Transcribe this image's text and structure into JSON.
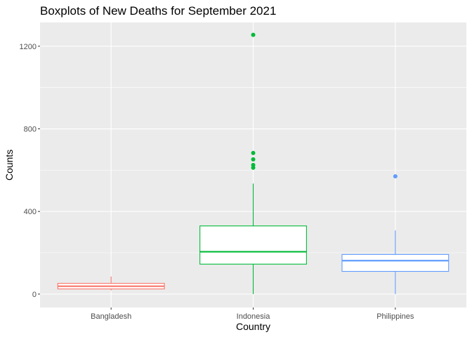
{
  "chart_data": {
    "type": "boxplot",
    "title": "Boxplots of New Deaths for September 2021",
    "xlabel": "Country",
    "ylabel": "Counts",
    "ylim": [
      -65,
      1315
    ],
    "yticks": [
      0,
      400,
      800,
      1200
    ],
    "grid": true,
    "legend": "none",
    "categories": [
      "Bangladesh",
      "Indonesia",
      "Philippines"
    ],
    "series": [
      {
        "category": "Bangladesh",
        "color": "#F8766D",
        "min": 18,
        "q1": 25,
        "median": 38,
        "q3": 52,
        "max": 85,
        "outliers": []
      },
      {
        "category": "Indonesia",
        "color": "#00BA38",
        "min": 0,
        "q1": 145,
        "median": 205,
        "q3": 330,
        "max": 535,
        "outliers": [
          612,
          625,
          652,
          683,
          1255
        ]
      },
      {
        "category": "Philippines",
        "color": "#619CFF",
        "min": 0,
        "q1": 110,
        "median": 162,
        "q3": 192,
        "max": 308,
        "outliers": [
          570
        ]
      }
    ]
  }
}
